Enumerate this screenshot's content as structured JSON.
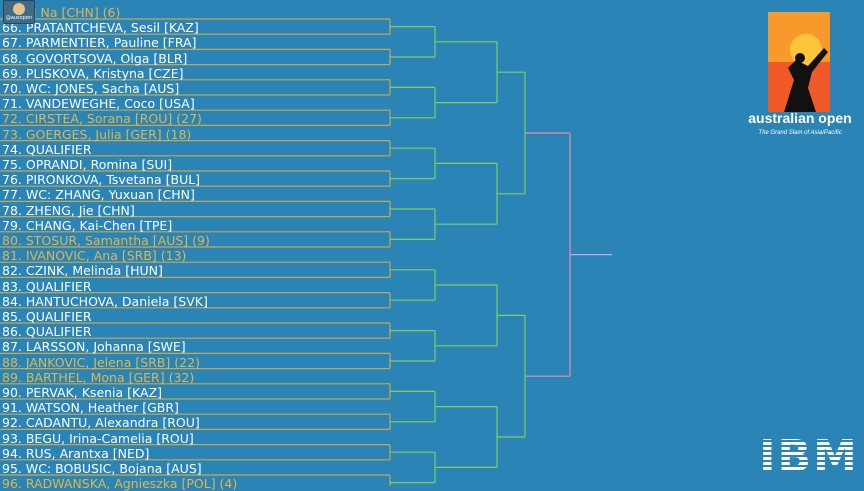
{
  "draw": {
    "entries": [
      {
        "text": "65. LI Na [CHN] (6)",
        "seeded": true
      },
      {
        "text": "66. PRATANTCHEVA, Sesil [KAZ]",
        "seeded": false
      },
      {
        "text": "67. PARMENTIER, Pauline [FRA]",
        "seeded": false
      },
      {
        "text": "68. GOVORTSOVA, Olga [BLR]",
        "seeded": false
      },
      {
        "text": "69. PLISKOVA, Kristyna [CZE]",
        "seeded": false
      },
      {
        "text": "70. WC: JONES, Sacha [AUS]",
        "seeded": false
      },
      {
        "text": "71. VANDEWEGHE, Coco [USA]",
        "seeded": false
      },
      {
        "text": "72. CIRSTEA, Sorana [ROU] (27)",
        "seeded": true
      },
      {
        "text": "73. GOERGES, Julia [GER] (18)",
        "seeded": true
      },
      {
        "text": "74. QUALIFIER",
        "seeded": false
      },
      {
        "text": "75. OPRANDI, Romina [SUI]",
        "seeded": false
      },
      {
        "text": "76. PIRONKOVA, Tsvetana [BUL]",
        "seeded": false
      },
      {
        "text": "77. WC: ZHANG, Yuxuan [CHN]",
        "seeded": false
      },
      {
        "text": "78. ZHENG, Jie [CHN]",
        "seeded": false
      },
      {
        "text": "79. CHANG, Kai-Chen [TPE]",
        "seeded": false
      },
      {
        "text": "80. STOSUR, Samantha [AUS] (9)",
        "seeded": true
      },
      {
        "text": "81. IVANOVIC, Ana [SRB] (13)",
        "seeded": true
      },
      {
        "text": "82. CZINK, Melinda [HUN]",
        "seeded": false
      },
      {
        "text": "83. QUALIFIER",
        "seeded": false
      },
      {
        "text": "84. HANTUCHOVA, Daniela [SVK]",
        "seeded": false
      },
      {
        "text": "85. QUALIFIER",
        "seeded": false
      },
      {
        "text": "86. QUALIFIER",
        "seeded": false
      },
      {
        "text": "87. LARSSON, Johanna [SWE]",
        "seeded": false
      },
      {
        "text": "88. JANKOVIC, Jelena [SRB] (22)",
        "seeded": true
      },
      {
        "text": "89. BARTHEL, Mona [GER] (32)",
        "seeded": true
      },
      {
        "text": "90. PERVAK, Ksenia [KAZ]",
        "seeded": false
      },
      {
        "text": "91. WATSON, Heather [GBR]",
        "seeded": false
      },
      {
        "text": "92. CADANTU, Alexandra [ROU]",
        "seeded": false
      },
      {
        "text": "93. BEGU, Irina-Camelia [ROU]",
        "seeded": false
      },
      {
        "text": "94. RUS, Arantxa [NED]",
        "seeded": false
      },
      {
        "text": "95. WC: BOBUSIC, Bojana [AUS]",
        "seeded": false
      },
      {
        "text": "96. RADWANSKA, Agnieszka [POL] (4)",
        "seeded": true
      }
    ]
  },
  "overlay": {
    "avatar_label": "@ausopen"
  },
  "branding": {
    "logo_text": "australian open",
    "logo_tagline": "The Grand Slam of Asia/Pacific",
    "sponsor": "IBM"
  },
  "colors": {
    "background": "#2b84b6",
    "seeded_text": "#e2b64a",
    "line_gold": "#c9a74c",
    "line_green": "#7ccf62",
    "line_pink": "#e98bb0",
    "line_lilac": "#c6a6e0"
  }
}
